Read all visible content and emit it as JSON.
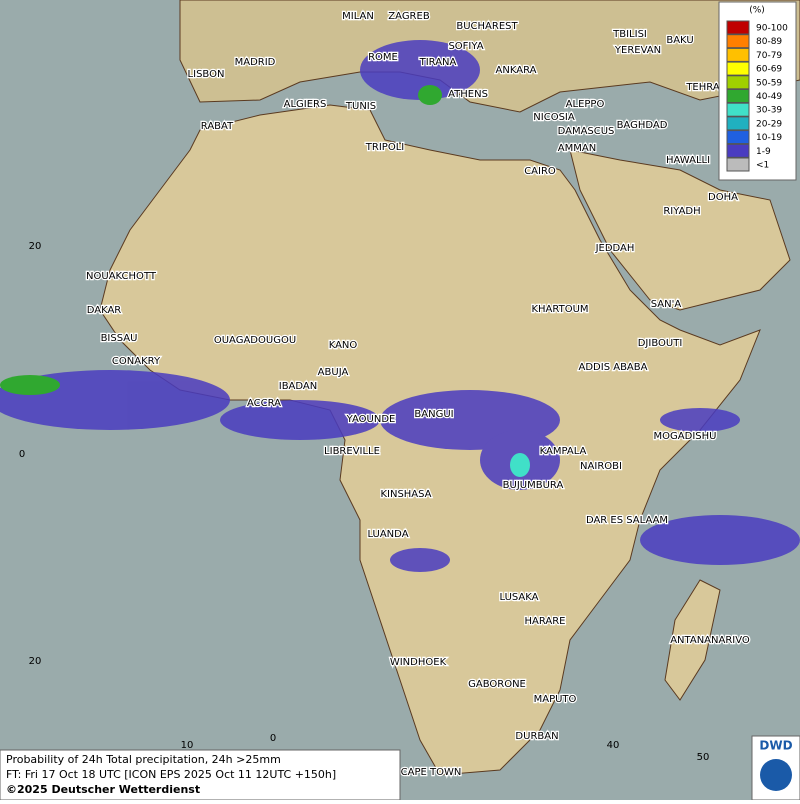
{
  "map": {
    "cities": [
      "MILAN",
      "ZAGREB",
      "BUCHAREST",
      "TBILISI",
      "BAKU",
      "SOFIYA",
      "YEREVAN",
      "ROME",
      "MADRID",
      "TIRANA",
      "ANKARA",
      "LISBON",
      "TEHRA",
      "ATHENS",
      "ALGIERS",
      "TUNIS",
      "ALEPPO",
      "NICOSIA",
      "BAGHDAD",
      "RABAT",
      "DAMASCUS",
      "TRIPOLI",
      "AMMAN",
      "HAWALLI",
      "CAIRO",
      "DOHA",
      "RIYADH",
      "JEDDAH",
      "NOUAKCHOTT",
      "SAN'A",
      "DAKAR",
      "KHARTOUM",
      "BISSAU",
      "OUAGADOUGOU",
      "KANO",
      "DJIBOUTI",
      "CONAKRY",
      "ABUJA",
      "ADDIS ABABA",
      "IBADAN",
      "ACCRA",
      "BANGUI",
      "YAOUNDE",
      "MOGADISHU",
      "KAMPALA",
      "LIBREVILLE",
      "NAIROBI",
      "BUJUMBURA",
      "KINSHASA",
      "DAR ES SALAAM",
      "LUANDA",
      "LUSAKA",
      "HARARE",
      "ANTANANARIVO",
      "WINDHOEK",
      "GABORONE",
      "MAPUTO",
      "DURBAN",
      "CAPE TOWN"
    ],
    "lat_labels": [
      "20",
      "0",
      "20"
    ],
    "lon_labels": [
      "10",
      "0",
      "40",
      "50"
    ]
  },
  "legend": {
    "title": "(%)",
    "items": [
      {
        "label": "90-100",
        "color": "#c00000"
      },
      {
        "label": "80-89",
        "color": "#ff7f00"
      },
      {
        "label": "70-79",
        "color": "#ffc000"
      },
      {
        "label": "60-69",
        "color": "#ffff00"
      },
      {
        "label": "50-59",
        "color": "#a0d000"
      },
      {
        "label": "40-49",
        "color": "#30a830"
      },
      {
        "label": "30-39",
        "color": "#40e0c8"
      },
      {
        "label": "20-29",
        "color": "#20b0c0"
      },
      {
        "label": "10-19",
        "color": "#2060e0"
      },
      {
        "label": "1-9",
        "color": "#4a3cc0"
      },
      {
        "label": "<1",
        "color": "#bbbbbb"
      }
    ]
  },
  "footer": {
    "line1": "Probability of 24h Total precipitation, 24h >25mm",
    "line2": "FT: Fri 17 Oct 18 UTC [ICON EPS 2025 Oct 11 12UTC +150h]",
    "line3": "©2025 Deutscher Wetterdienst"
  },
  "logo": "DWD"
}
